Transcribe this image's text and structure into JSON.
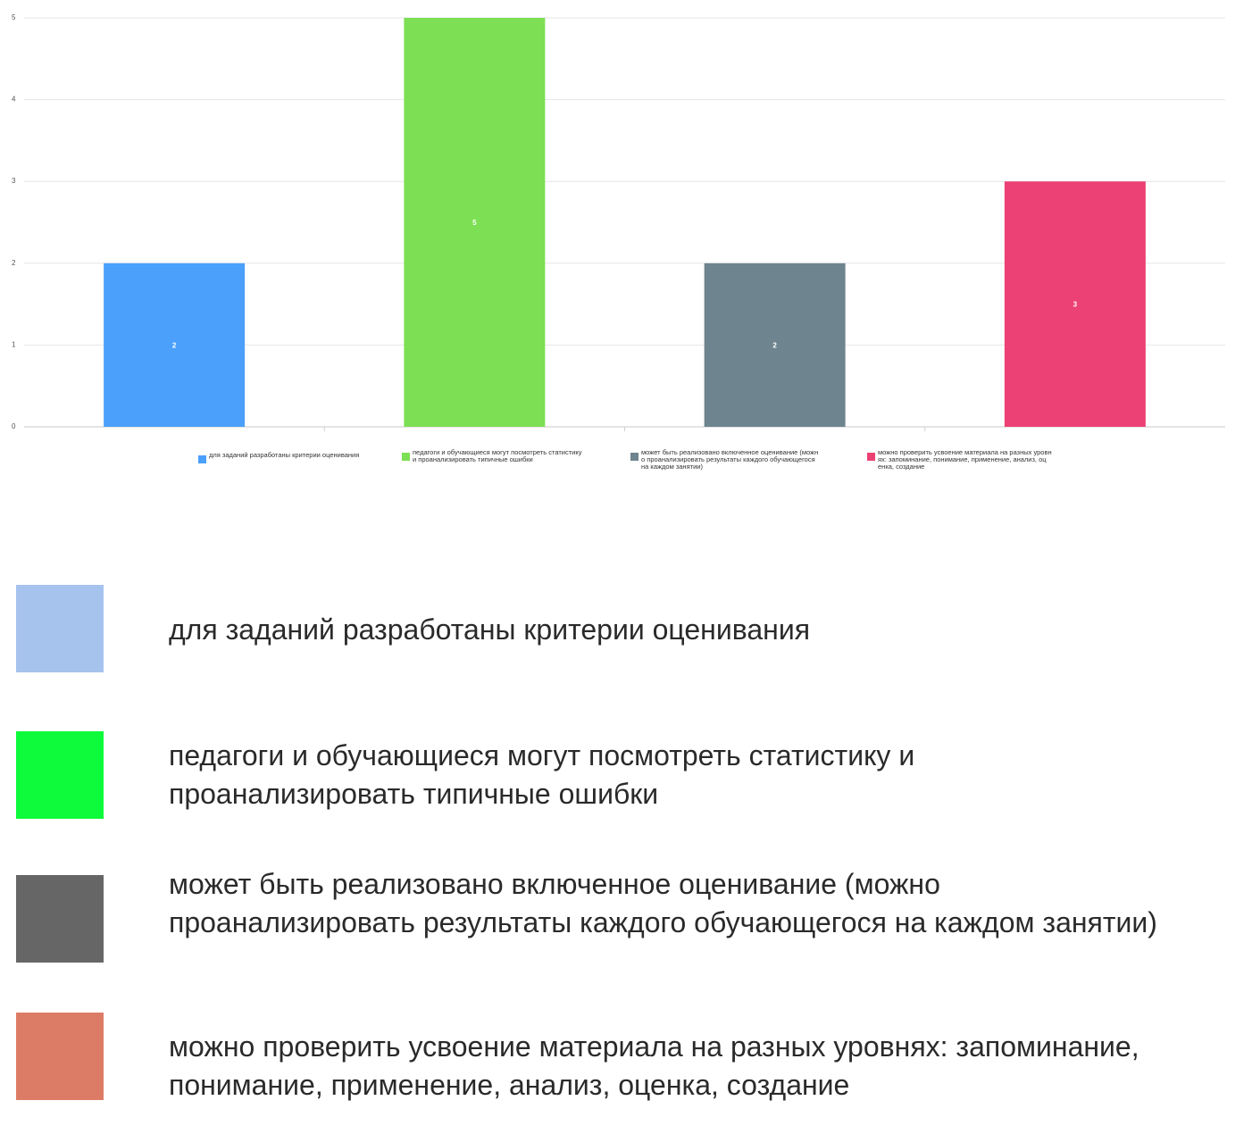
{
  "chart_data": {
    "type": "bar",
    "categories": [
      "для заданий разработаны критерии оценивания",
      "педагоги и обучающиеся могут посмотреть статистику и проанализировать типичные ошибки",
      "может быть реализовано включенное оценивание (можно проанализировать результаты каждого обучающегося на каждом занятии)",
      "можно проверить усвоение материала на разных уровнях: запоминание, понимание, применение, анализ, оценка, создание"
    ],
    "values": [
      2,
      5,
      2,
      3
    ],
    "colors": [
      "#4aa0fb",
      "#7ddf54",
      "#6e848e",
      "#ec4174"
    ],
    "data_labels": [
      "2",
      "5",
      "2",
      "3"
    ],
    "y_ticks": [
      "0",
      "1",
      "2",
      "3",
      "4",
      "5"
    ],
    "ylim": [
      0,
      5
    ],
    "grid": true,
    "legend_position": "bottom",
    "title": "",
    "xlabel": "",
    "ylabel": ""
  },
  "chart_legend": [
    {
      "label": "для заданий разработаны критерии оценивания",
      "color": "#4aa0fb"
    },
    {
      "label": "педагоги и обучающиеся могут посмотреть статистику\nи проанализировать типичные ошибки",
      "color": "#7ddf54"
    },
    {
      "label": "может быть реализовано включенное оценивание (можн\nо проанализировать результаты каждого обучающегося\nна каждом занятии)",
      "color": "#6e848e"
    },
    {
      "label": "можно проверить усвоение материала на разных уровн\nях: запоминание, понимание, применение, анализ, оц\nенка, создание",
      "color": "#ec4174"
    }
  ],
  "key": [
    {
      "label": "для заданий разработаны критерии оценивания",
      "color": "#a6c3ee"
    },
    {
      "label": "педагоги и обучающиеся могут посмотреть статистику и проанализировать типичные ошибки",
      "color": "#0dfb3b"
    },
    {
      "label": "может быть реализовано включенное оценивание (можно проанализировать результаты каждого обучающегося на каждом занятии)",
      "color": "#666666"
    },
    {
      "label": "можно проверить усвоение материала на разных уровнях: запоминание, понимание, применение, анализ, оценка, создание",
      "color": "#dd7c66"
    }
  ]
}
